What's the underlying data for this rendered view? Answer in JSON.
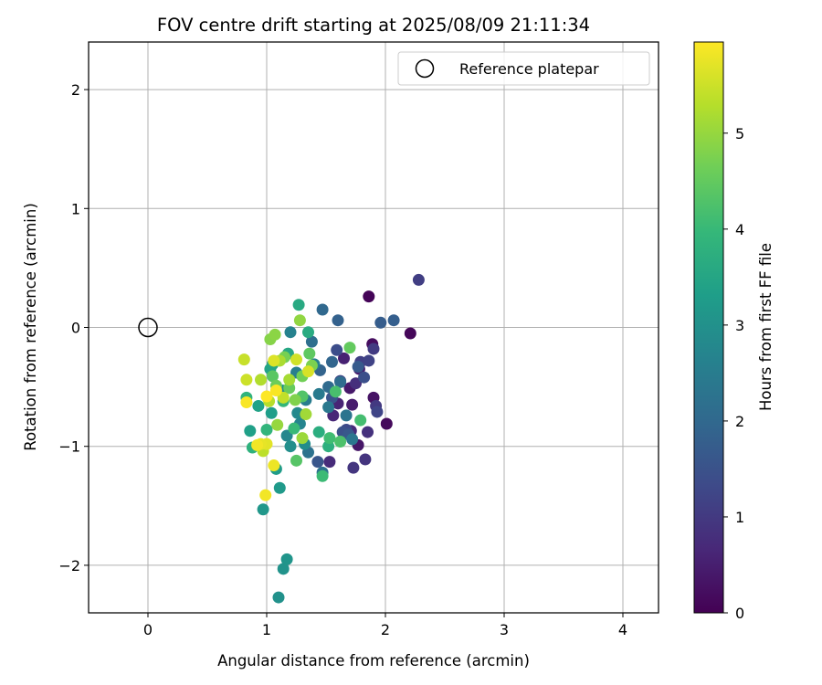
{
  "chart_data": {
    "type": "scatter",
    "title": "FOV centre drift starting at 2025/08/09 21:11:34",
    "xlabel": "Angular distance from reference (arcmin)",
    "ylabel": "Rotation from reference (arcmin)",
    "xlim": [
      -0.5,
      4.3
    ],
    "ylim": [
      -2.4,
      2.4
    ],
    "x_ticks": [
      0,
      1,
      2,
      3,
      4
    ],
    "y_ticks": [
      -2,
      -1,
      0,
      1,
      2
    ],
    "x_tick_labels": [
      "0",
      "1",
      "2",
      "3",
      "4"
    ],
    "y_tick_labels": [
      "−2",
      "−1",
      "0",
      "1",
      "2"
    ],
    "grid": true,
    "legend": {
      "placement": "top-right",
      "entries": [
        {
          "label": "Reference platepar",
          "marker": "open-circle"
        }
      ]
    },
    "reference_point": {
      "x": 0,
      "y": 0
    },
    "colorbar": {
      "label": "Hours from first FF file",
      "colormap": "viridis",
      "min": 0,
      "max": 5.95,
      "ticks": [
        0,
        1,
        2,
        3,
        4,
        5
      ],
      "tick_labels": [
        "0",
        "1",
        "2",
        "3",
        "4",
        "5"
      ]
    },
    "points": [
      {
        "x": 1.86,
        "y": 0.26,
        "c": 0.05
      },
      {
        "x": 2.21,
        "y": -0.05,
        "c": 0.1
      },
      {
        "x": 2.01,
        "y": -0.81,
        "c": 0.15
      },
      {
        "x": 1.89,
        "y": -0.14,
        "c": 0.2
      },
      {
        "x": 1.9,
        "y": -0.59,
        "c": 0.3
      },
      {
        "x": 1.77,
        "y": -0.99,
        "c": 0.35
      },
      {
        "x": 1.7,
        "y": -0.51,
        "c": 0.4
      },
      {
        "x": 1.72,
        "y": -0.65,
        "c": 0.45
      },
      {
        "x": 1.78,
        "y": -0.35,
        "c": 0.5
      },
      {
        "x": 1.65,
        "y": -0.26,
        "c": 0.55
      },
      {
        "x": 1.6,
        "y": -0.64,
        "c": 0.6
      },
      {
        "x": 1.56,
        "y": -0.74,
        "c": 0.65
      },
      {
        "x": 1.71,
        "y": -0.87,
        "c": 0.7
      },
      {
        "x": 1.53,
        "y": -1.13,
        "c": 0.75
      },
      {
        "x": 1.75,
        "y": -0.47,
        "c": 0.8
      },
      {
        "x": 1.85,
        "y": -0.88,
        "c": 0.85
      },
      {
        "x": 1.83,
        "y": -1.11,
        "c": 0.9
      },
      {
        "x": 1.73,
        "y": -1.18,
        "c": 0.95
      },
      {
        "x": 1.92,
        "y": -0.66,
        "c": 1.0
      },
      {
        "x": 1.9,
        "y": -0.18,
        "c": 1.05
      },
      {
        "x": 2.28,
        "y": 0.4,
        "c": 1.1
      },
      {
        "x": 1.79,
        "y": -0.29,
        "c": 1.15
      },
      {
        "x": 1.86,
        "y": -0.28,
        "c": 1.2
      },
      {
        "x": 1.93,
        "y": -0.71,
        "c": 1.25
      },
      {
        "x": 1.62,
        "y": -0.45,
        "c": 1.3
      },
      {
        "x": 1.67,
        "y": -0.86,
        "c": 1.35
      },
      {
        "x": 1.59,
        "y": -0.19,
        "c": 1.4
      },
      {
        "x": 1.82,
        "y": -0.42,
        "c": 1.45
      },
      {
        "x": 1.64,
        "y": -0.88,
        "c": 1.5
      },
      {
        "x": 1.55,
        "y": -0.59,
        "c": 1.55
      },
      {
        "x": 1.43,
        "y": -1.13,
        "c": 1.6
      },
      {
        "x": 1.69,
        "y": -0.9,
        "c": 1.65
      },
      {
        "x": 1.77,
        "y": -0.33,
        "c": 1.7
      },
      {
        "x": 1.96,
        "y": 0.04,
        "c": 1.75
      },
      {
        "x": 2.07,
        "y": 0.06,
        "c": 1.8
      },
      {
        "x": 1.6,
        "y": 0.06,
        "c": 1.85
      },
      {
        "x": 1.45,
        "y": -0.36,
        "c": 1.9
      },
      {
        "x": 1.55,
        "y": -0.29,
        "c": 1.95
      },
      {
        "x": 1.47,
        "y": 0.15,
        "c": 2.0
      },
      {
        "x": 1.52,
        "y": -0.5,
        "c": 2.05
      },
      {
        "x": 1.62,
        "y": -0.46,
        "c": 2.1
      },
      {
        "x": 1.38,
        "y": -0.12,
        "c": 2.15
      },
      {
        "x": 1.47,
        "y": -1.22,
        "c": 2.2
      },
      {
        "x": 1.35,
        "y": -1.05,
        "c": 2.25
      },
      {
        "x": 1.67,
        "y": -0.74,
        "c": 2.3
      },
      {
        "x": 1.72,
        "y": -0.94,
        "c": 2.35
      },
      {
        "x": 1.52,
        "y": -0.67,
        "c": 2.4
      },
      {
        "x": 1.44,
        "y": -0.56,
        "c": 2.45
      },
      {
        "x": 1.33,
        "y": -0.61,
        "c": 2.5
      },
      {
        "x": 1.25,
        "y": -0.38,
        "c": 2.55
      },
      {
        "x": 1.4,
        "y": -0.31,
        "c": 2.6
      },
      {
        "x": 1.2,
        "y": -0.04,
        "c": 2.65
      },
      {
        "x": 1.28,
        "y": -0.81,
        "c": 2.7
      },
      {
        "x": 1.17,
        "y": -0.91,
        "c": 2.75
      },
      {
        "x": 1.26,
        "y": -0.72,
        "c": 2.8
      },
      {
        "x": 1.13,
        "y": -0.53,
        "c": 2.85
      },
      {
        "x": 1.32,
        "y": -0.98,
        "c": 2.9
      },
      {
        "x": 1.2,
        "y": -1.0,
        "c": 2.95
      },
      {
        "x": 1.1,
        "y": -2.27,
        "c": 3.0
      },
      {
        "x": 1.14,
        "y": -2.03,
        "c": 3.05
      },
      {
        "x": 1.17,
        "y": -1.95,
        "c": 3.1
      },
      {
        "x": 0.97,
        "y": -1.53,
        "c": 3.15
      },
      {
        "x": 1.11,
        "y": -1.35,
        "c": 3.2
      },
      {
        "x": 1.08,
        "y": -1.19,
        "c": 3.25
      },
      {
        "x": 1.04,
        "y": -0.72,
        "c": 3.3
      },
      {
        "x": 0.86,
        "y": -0.87,
        "c": 3.35
      },
      {
        "x": 0.93,
        "y": -0.66,
        "c": 3.4
      },
      {
        "x": 1.03,
        "y": -0.35,
        "c": 3.45
      },
      {
        "x": 1.05,
        "y": -0.31,
        "c": 3.5
      },
      {
        "x": 1.18,
        "y": -0.22,
        "c": 3.55
      },
      {
        "x": 1.27,
        "y": 0.19,
        "c": 3.6
      },
      {
        "x": 1.35,
        "y": -0.04,
        "c": 3.65
      },
      {
        "x": 1.44,
        "y": -0.88,
        "c": 3.7
      },
      {
        "x": 1.52,
        "y": -1.0,
        "c": 3.75
      },
      {
        "x": 0.88,
        "y": -1.01,
        "c": 3.8
      },
      {
        "x": 0.83,
        "y": -0.59,
        "c": 3.85
      },
      {
        "x": 1.0,
        "y": -0.86,
        "c": 3.9
      },
      {
        "x": 1.14,
        "y": -0.62,
        "c": 3.95
      },
      {
        "x": 1.23,
        "y": -0.85,
        "c": 4.0
      },
      {
        "x": 1.47,
        "y": -1.25,
        "c": 4.05
      },
      {
        "x": 1.53,
        "y": -0.93,
        "c": 4.1
      },
      {
        "x": 1.79,
        "y": -0.78,
        "c": 4.15
      },
      {
        "x": 1.58,
        "y": -0.54,
        "c": 4.2
      },
      {
        "x": 1.62,
        "y": -0.96,
        "c": 4.25
      },
      {
        "x": 1.3,
        "y": -0.58,
        "c": 4.3
      },
      {
        "x": 1.25,
        "y": -1.12,
        "c": 4.35
      },
      {
        "x": 1.05,
        "y": -0.41,
        "c": 4.4
      },
      {
        "x": 1.36,
        "y": -0.22,
        "c": 4.45
      },
      {
        "x": 1.7,
        "y": -0.17,
        "c": 4.5
      },
      {
        "x": 1.19,
        "y": -0.51,
        "c": 4.55
      },
      {
        "x": 1.08,
        "y": -0.49,
        "c": 4.6
      },
      {
        "x": 1.3,
        "y": -0.41,
        "c": 4.65
      },
      {
        "x": 1.15,
        "y": -0.25,
        "c": 4.7
      },
      {
        "x": 1.38,
        "y": -0.32,
        "c": 4.75
      },
      {
        "x": 1.24,
        "y": -0.61,
        "c": 4.8
      },
      {
        "x": 1.03,
        "y": -0.1,
        "c": 4.85
      },
      {
        "x": 1.07,
        "y": -0.06,
        "c": 4.9
      },
      {
        "x": 1.28,
        "y": 0.06,
        "c": 4.95
      },
      {
        "x": 1.09,
        "y": -0.82,
        "c": 5.0
      },
      {
        "x": 1.3,
        "y": -0.93,
        "c": 5.05
      },
      {
        "x": 1.33,
        "y": -0.73,
        "c": 5.1
      },
      {
        "x": 1.19,
        "y": -0.44,
        "c": 5.15
      },
      {
        "x": 1.11,
        "y": -0.28,
        "c": 5.2
      },
      {
        "x": 0.95,
        "y": -0.44,
        "c": 5.25
      },
      {
        "x": 1.02,
        "y": -0.62,
        "c": 5.3
      },
      {
        "x": 0.97,
        "y": -1.04,
        "c": 5.35
      },
      {
        "x": 1.14,
        "y": -0.59,
        "c": 5.4
      },
      {
        "x": 0.81,
        "y": -0.27,
        "c": 5.45
      },
      {
        "x": 0.83,
        "y": -0.44,
        "c": 5.5
      },
      {
        "x": 1.25,
        "y": -0.27,
        "c": 5.55
      },
      {
        "x": 1.35,
        "y": -0.37,
        "c": 5.6
      },
      {
        "x": 1.06,
        "y": -0.28,
        "c": 5.65
      },
      {
        "x": 1.0,
        "y": -0.98,
        "c": 5.7
      },
      {
        "x": 0.95,
        "y": -0.98,
        "c": 5.75
      },
      {
        "x": 1.06,
        "y": -1.16,
        "c": 5.8
      },
      {
        "x": 0.99,
        "y": -1.41,
        "c": 5.85
      },
      {
        "x": 0.83,
        "y": -0.63,
        "c": 5.9
      },
      {
        "x": 1.0,
        "y": -0.58,
        "c": 5.95
      },
      {
        "x": 1.08,
        "y": -0.53,
        "c": 5.9
      },
      {
        "x": 0.92,
        "y": -0.99,
        "c": 5.85
      }
    ]
  }
}
